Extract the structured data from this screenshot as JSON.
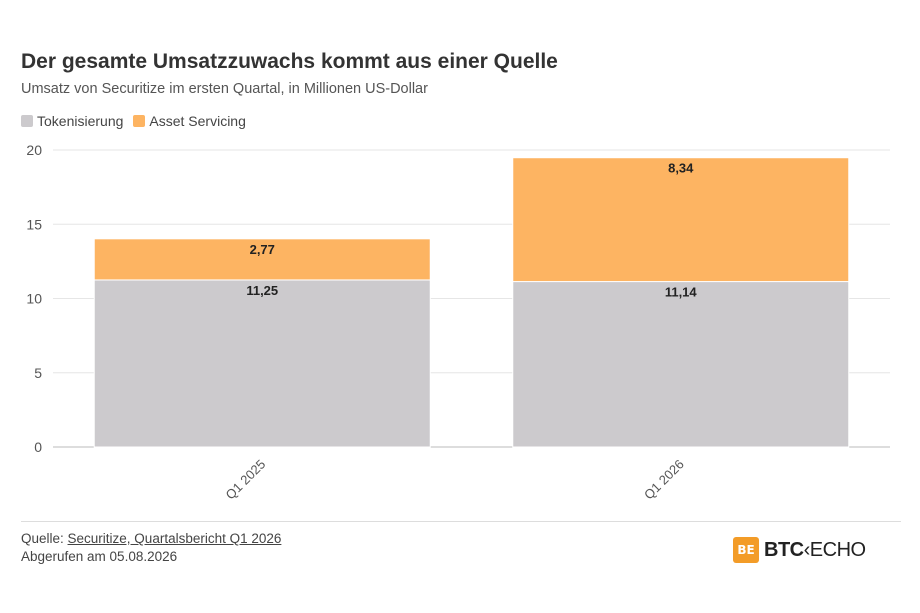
{
  "header": {
    "title": "Der gesamte Umsatzzuwachs kommt aus einer Quelle",
    "subtitle": "Umsatz von Securitize im ersten Quartal, in Millionen US-Dollar"
  },
  "legend": [
    {
      "label": "Tokenisierung",
      "color": "#cccacd"
    },
    {
      "label": "Asset Servicing",
      "color": "#fdb462"
    }
  ],
  "chart_data": {
    "type": "bar",
    "stacked": true,
    "categories": [
      "Q1 2025",
      "Q1 2026"
    ],
    "series": [
      {
        "name": "Tokenisierung",
        "values": [
          11.25,
          11.14
        ],
        "labels": [
          "11,25",
          "11,14"
        ],
        "color": "#cccacd"
      },
      {
        "name": "Asset Servicing",
        "values": [
          2.77,
          8.34
        ],
        "labels": [
          "2,77",
          "8,34"
        ],
        "color": "#fdb462"
      }
    ],
    "ylim": [
      0,
      20
    ],
    "yticks": [
      0,
      5,
      10,
      15,
      20
    ],
    "grid": true,
    "legend_position": "top-left",
    "xlabel": "",
    "ylabel": ""
  },
  "footer": {
    "source_prefix": "Quelle: ",
    "source_link": "Securitize, Quartalsbericht Q1 2026",
    "retrieved": "Abgerufen am 05.08.2026",
    "brand_mark": "BE",
    "brand_name_1": "BTC",
    "brand_name_2": "ECHO"
  }
}
